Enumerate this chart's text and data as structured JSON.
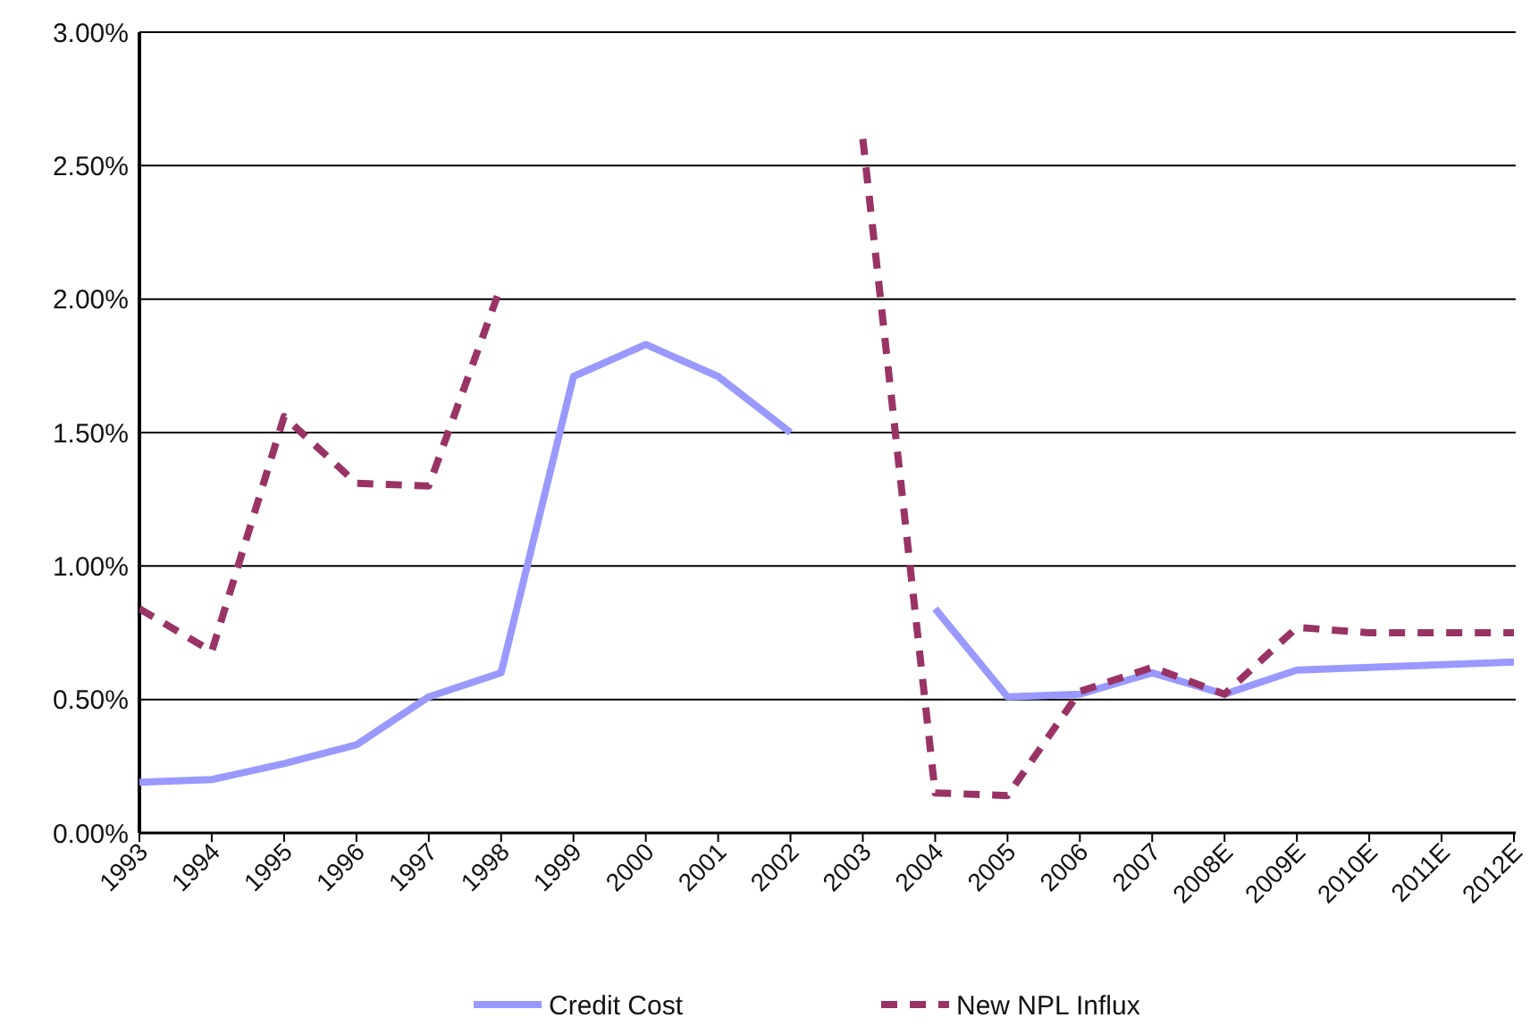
{
  "chart_data": {
    "type": "line",
    "categories": [
      "1993",
      "1994",
      "1995",
      "1996",
      "1997",
      "1998",
      "1999",
      "2000",
      "2001",
      "2002",
      "2003",
      "2004",
      "2005",
      "2006",
      "2007",
      "2008E",
      "2009E",
      "2010E",
      "2011E",
      "2012E"
    ],
    "series": [
      {
        "name": "Credit Cost",
        "color": "#9999ff",
        "line_style": "solid",
        "values": [
          0.19,
          0.2,
          0.26,
          0.33,
          0.51,
          0.6,
          1.71,
          1.83,
          1.71,
          1.5,
          null,
          0.84,
          0.51,
          0.52,
          0.6,
          0.52,
          0.61,
          0.62,
          0.63,
          0.64
        ]
      },
      {
        "name": "New NPL Influx",
        "color": "#993366",
        "line_style": "dashed",
        "values": [
          0.84,
          0.68,
          1.56,
          1.31,
          1.3,
          2.05,
          null,
          null,
          null,
          null,
          2.6,
          0.15,
          0.14,
          0.53,
          0.62,
          0.52,
          0.77,
          0.75,
          0.75,
          0.75
        ]
      }
    ],
    "ylim": [
      0,
      3
    ],
    "yticks": [
      {
        "value": 0,
        "label": "0.00%"
      },
      {
        "value": 0.5,
        "label": "0.50%"
      },
      {
        "value": 1,
        "label": "1.00%"
      },
      {
        "value": 1.5,
        "label": "1.50%"
      },
      {
        "value": 2,
        "label": "2.00%"
      },
      {
        "value": 2.5,
        "label": "2.50%"
      },
      {
        "value": 3,
        "label": "3.00%"
      }
    ],
    "grid": "y",
    "legend": "bottom"
  }
}
